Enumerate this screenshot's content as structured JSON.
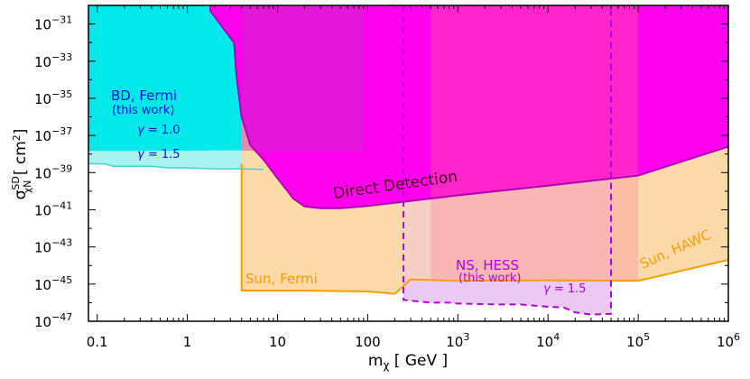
{
  "chart_data": {
    "type": "area",
    "xlabel": "m_χ [GeV]",
    "ylabel": "σ_χN^SD [cm²]",
    "xscale": "log",
    "yscale": "log",
    "xlim": [
      0.08,
      1000000
    ],
    "ylim": [
      1e-47,
      1e-30
    ],
    "x_ticks": [
      {
        "value": 0.1,
        "label": "0.1"
      },
      {
        "value": 1,
        "label": "1"
      },
      {
        "value": 10,
        "label": "10"
      },
      {
        "value": 100,
        "label": "100"
      },
      {
        "value": 1000,
        "base": "10",
        "exp": "3"
      },
      {
        "value": 10000,
        "base": "10",
        "exp": "4"
      },
      {
        "value": 100000,
        "base": "10",
        "exp": "5"
      },
      {
        "value": 1000000,
        "base": "10",
        "exp": "6"
      }
    ],
    "y_ticks": [
      {
        "value": 1e-31,
        "base": "10",
        "exp": "−31"
      },
      {
        "value": 1e-33,
        "base": "10",
        "exp": "−33"
      },
      {
        "value": 1e-35,
        "base": "10",
        "exp": "−35"
      },
      {
        "value": 1e-37,
        "base": "10",
        "exp": "−37"
      },
      {
        "value": 1e-39,
        "base": "10",
        "exp": "−39"
      },
      {
        "value": 1e-41,
        "base": "10",
        "exp": "−41"
      },
      {
        "value": 1e-43,
        "base": "10",
        "exp": "−43"
      },
      {
        "value": 1e-45,
        "base": "10",
        "exp": "−45"
      },
      {
        "value": 1e-47,
        "base": "10",
        "exp": "−47"
      }
    ],
    "series": [
      {
        "name": "BD, Fermi γ=1.5",
        "color": "#a8f2f0",
        "line_color": "#3fd7d0",
        "points": [
          [
            0.08,
            3e-39
          ],
          [
            0.12,
            3e-39
          ],
          [
            0.15,
            2.2e-39
          ],
          [
            0.4,
            2.2e-39
          ],
          [
            0.6,
            1.8e-39
          ],
          [
            1,
            1.8e-39
          ],
          [
            2,
            1.6e-39
          ],
          [
            4,
            1.6e-39
          ],
          [
            7,
            1.5e-39
          ]
        ]
      },
      {
        "name": "BD, Fermi γ=1.0",
        "color": "#00e8ea",
        "points": [
          [
            0.08,
            1e-30
          ],
          [
            2.5,
            1e-30
          ],
          [
            2.5,
            6e-31
          ],
          [
            4.5,
            6e-31
          ],
          [
            6,
            1.6e-38
          ],
          [
            0.5,
            1.5e-38
          ],
          [
            0.08,
            1.5e-38
          ]
        ]
      },
      {
        "name": "Direct Detection",
        "color": "#ff00ee",
        "line_color": "#b000b0",
        "points": [
          [
            1.8,
            1e-30
          ],
          [
            1.8,
            5e-31
          ],
          [
            2.5,
            6e-32
          ],
          [
            3.3,
            1e-32
          ],
          [
            3.5,
            2e-34
          ],
          [
            4,
            1e-36
          ],
          [
            5,
            3e-38
          ],
          [
            7,
            5e-39
          ],
          [
            10,
            5e-40
          ],
          [
            15,
            4e-41
          ],
          [
            20,
            1.5e-41
          ],
          [
            30,
            1.2e-41
          ],
          [
            50,
            1.2e-41
          ],
          [
            100,
            1.6e-41
          ],
          [
            300,
            3e-41
          ],
          [
            1000,
            6e-41
          ],
          [
            10000,
            2e-40
          ],
          [
            100000,
            7e-40
          ],
          [
            1000000,
            2.5e-38
          ]
        ]
      },
      {
        "name": "Sun, Fermi",
        "color": "#fcd9a8",
        "line_color": "#f5a000",
        "points": [
          [
            4,
            3e-39
          ],
          [
            4,
            4.5e-46
          ],
          [
            10,
            4.5e-46
          ],
          [
            20,
            4.5e-46
          ],
          [
            50,
            4.2e-46
          ],
          [
            100,
            4e-46
          ],
          [
            200,
            3e-46
          ],
          [
            300,
            1.8e-45
          ]
        ]
      },
      {
        "name": "Sun, HAWC",
        "color": "#fcd9a8",
        "line_color": "#f5a000",
        "points": [
          [
            1000,
            1.5e-45
          ],
          [
            10000,
            1.6e-45
          ],
          [
            100000,
            1.5e-45
          ],
          [
            1000000,
            2e-44
          ]
        ]
      },
      {
        "name": "NS, HESS γ=1.5",
        "color": "#e6bff2",
        "line_color": "#b400dc",
        "points": [
          [
            250,
            1e-30
          ],
          [
            250,
            1.4e-46
          ],
          [
            500,
            1e-46
          ],
          [
            800,
            1e-46
          ],
          [
            1000,
            9e-47
          ],
          [
            3000,
            8e-47
          ],
          [
            5000,
            8e-47
          ],
          [
            10000,
            6e-47
          ],
          [
            15000,
            5.5e-47
          ],
          [
            20000,
            3e-47
          ],
          [
            30000,
            2.3e-47
          ],
          [
            50000,
            2.5e-47
          ],
          [
            50000,
            1e-30
          ]
        ]
      }
    ],
    "shaded_boxes": [
      {
        "x": [
          4,
          90
        ],
        "y": [
          1.5e-38,
          1e-30
        ],
        "color": "#c030c0"
      },
      {
        "x": [
          500,
          100000
        ],
        "y": [
          1.5e-45,
          1e-30
        ],
        "color": "#ff50a0"
      }
    ],
    "annotations": [
      {
        "text": "BD, Fermi",
        "color": "#1010e0"
      },
      {
        "text": "(this work)",
        "color": "#1010e0"
      },
      {
        "text": "γ = 1.0",
        "color": "#1010e0"
      },
      {
        "text": "γ = 1.5",
        "color": "#1010e0"
      },
      {
        "text": "Direct Detection",
        "color": "#4a0a1a"
      },
      {
        "text": "Sun, Fermi",
        "color": "#f5a000"
      },
      {
        "text": "Sun, HAWC",
        "color": "#f5a000"
      },
      {
        "text": "NS, HESS",
        "color": "#b400dc"
      },
      {
        "text": "(this work)",
        "color": "#b400dc"
      },
      {
        "text": "γ = 1.5",
        "color": "#b400dc"
      }
    ]
  }
}
